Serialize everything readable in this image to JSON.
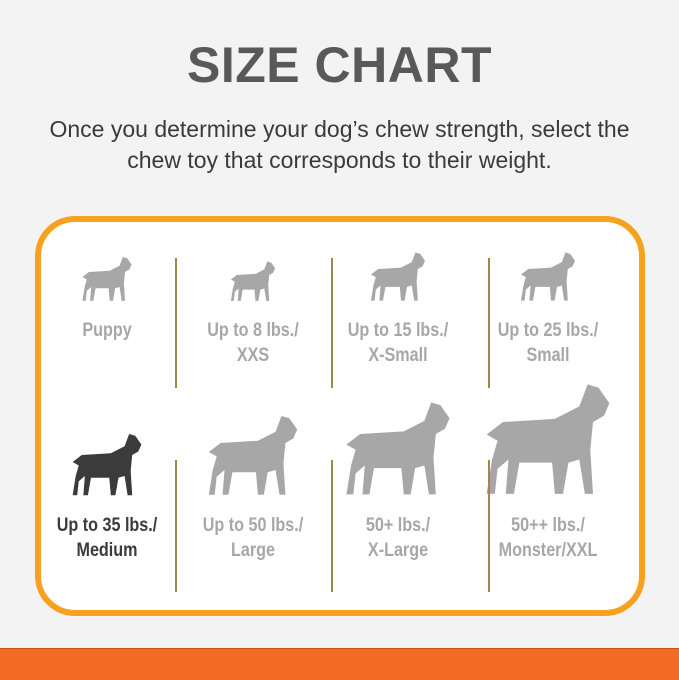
{
  "title": "SIZE CHART",
  "subtitle": "Once you determine your dog’s chew strength, select the chew toy that corresponds to their weight.",
  "colors": {
    "accent_border": "#f7a11f",
    "footer_bar": "#f26b24",
    "inactive": "#a7a7a7",
    "active": "#3b3b3b"
  },
  "sizes": [
    {
      "line1": "Puppy",
      "line2": "",
      "icon": "puppy-icon",
      "active": false
    },
    {
      "line1": "Up to 8 lbs./",
      "line2": "XXS",
      "icon": "chihuahua-icon",
      "active": false
    },
    {
      "line1": "Up to 15 lbs./",
      "line2": "X-Small",
      "icon": "toy-pinscher-icon",
      "active": false
    },
    {
      "line1": "Up to 25 lbs./",
      "line2": "Small",
      "icon": "terrier-icon",
      "active": false
    },
    {
      "line1": "Up to 35 lbs./",
      "line2": "Medium",
      "icon": "beagle-icon",
      "active": true
    },
    {
      "line1": "Up to 50 lbs./",
      "line2": "Large",
      "icon": "labrador-icon",
      "active": false
    },
    {
      "line1": "50+ lbs./",
      "line2": "X-Large",
      "icon": "german-shepherd-icon",
      "active": false
    },
    {
      "line1": "50++ lbs./",
      "line2": "Monster/XXL",
      "icon": "great-dane-icon",
      "active": false
    }
  ]
}
